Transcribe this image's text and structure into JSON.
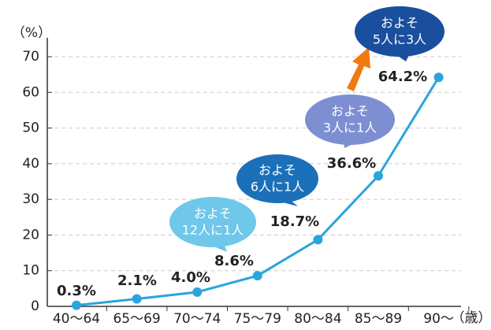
{
  "chart_data": {
    "type": "line",
    "y_unit_label": "（%）",
    "x_unit_label": "（歳）",
    "categories": [
      "40〜64",
      "65〜69",
      "70〜74",
      "75〜79",
      "80〜84",
      "85〜89",
      "90〜"
    ],
    "series": [
      {
        "color": "#2aa4dd",
        "values": [
          0.3,
          2.1,
          4.0,
          8.6,
          18.7,
          36.6,
          64.2
        ],
        "value_labels": [
          "0.3%",
          "2.1%",
          "4.0%",
          "8.6%",
          "18.7%",
          "36.6%",
          "64.2%"
        ]
      }
    ],
    "ylim": [
      0,
      70
    ],
    "yticks": [
      0,
      10,
      20,
      30,
      40,
      50,
      60,
      70
    ],
    "grid": true,
    "annotations": [
      {
        "lines": [
          "およそ",
          "12人に1人"
        ],
        "color": "#6fc7ea"
      },
      {
        "lines": [
          "およそ",
          "6人に1人"
        ],
        "color": "#1b70b9"
      },
      {
        "lines": [
          "およそ",
          "3人に1人"
        ],
        "color": "#7d8fd1"
      },
      {
        "lines": [
          "およそ",
          "5人に3人"
        ],
        "color": "#1a4e9e"
      }
    ]
  }
}
